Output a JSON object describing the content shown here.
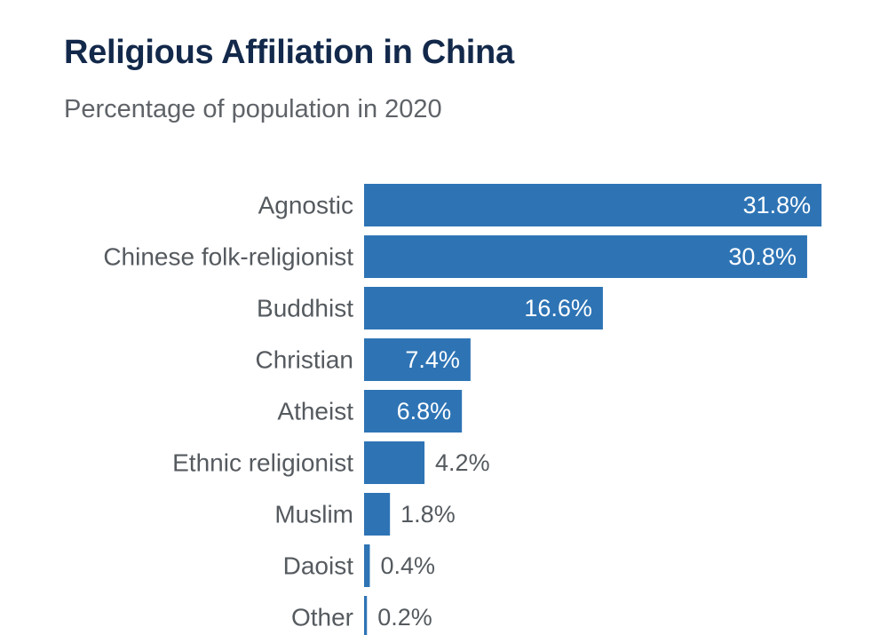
{
  "title": "Religious Affiliation in China",
  "subtitle": "Percentage of population in 2020",
  "colors": {
    "bar": "#2e74b5",
    "title": "#13294b",
    "subtitle": "#5f6368",
    "category_label": "#555a5f",
    "value_label_inside": "#ffffff",
    "value_label_outside": "#555a5f"
  },
  "chart_data": {
    "type": "bar",
    "orientation": "horizontal",
    "title": "Religious Affiliation in China",
    "subtitle": "Percentage of population in 2020",
    "xlabel": "",
    "ylabel": "",
    "unit": "%",
    "grid": false,
    "legend": "none",
    "categories": [
      "Agnostic",
      "Chinese folk-religionist",
      "Buddhist",
      "Christian",
      "Atheist",
      "Ethnic religionist",
      "Muslim",
      "Daoist",
      "Other"
    ],
    "values": [
      31.8,
      30.8,
      16.6,
      7.4,
      6.8,
      4.2,
      1.8,
      0.4,
      0.2
    ],
    "value_labels": [
      "31.8%",
      "30.8%",
      "16.6%",
      "7.4%",
      "6.8%",
      "4.2%",
      "1.8%",
      "0.4%",
      "0.2%"
    ]
  }
}
